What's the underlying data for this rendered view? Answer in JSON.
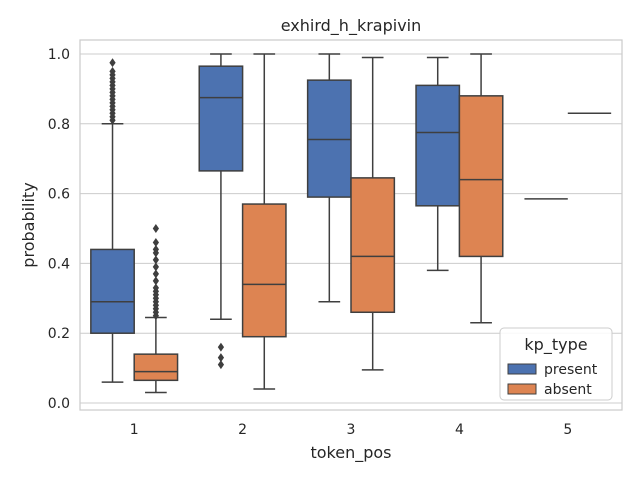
{
  "chart_data": {
    "type": "box",
    "title": "exhird_h_krapivin",
    "xlabel": "token_pos",
    "ylabel": "probability",
    "ylim": [
      -0.02,
      1.04
    ],
    "yticks": [
      0.0,
      0.2,
      0.4,
      0.6,
      0.8,
      1.0
    ],
    "ytick_labels": [
      "0.0",
      "0.2",
      "0.4",
      "0.6",
      "0.8",
      "1.0"
    ],
    "categories": [
      "1",
      "2",
      "3",
      "4",
      "5"
    ],
    "grid": true,
    "legend": {
      "title": "kp_type",
      "position": "lower-right"
    },
    "series": [
      {
        "name": "present",
        "color": "#4c72b0",
        "boxes": [
          {
            "category": "1",
            "whislo": 0.06,
            "q1": 0.2,
            "med": 0.29,
            "q3": 0.44,
            "whishi": 0.8,
            "fliers": [
              0.81,
              0.82,
              0.83,
              0.84,
              0.85,
              0.86,
              0.87,
              0.88,
              0.89,
              0.9,
              0.91,
              0.92,
              0.93,
              0.94,
              0.95,
              0.975
            ]
          },
          {
            "category": "2",
            "whislo": 0.24,
            "q1": 0.665,
            "med": 0.875,
            "q3": 0.965,
            "whishi": 1.0,
            "fliers": [
              0.11,
              0.13,
              0.16
            ]
          },
          {
            "category": "3",
            "whislo": 0.29,
            "q1": 0.59,
            "med": 0.755,
            "q3": 0.925,
            "whishi": 1.0,
            "fliers": []
          },
          {
            "category": "4",
            "whislo": 0.38,
            "q1": 0.565,
            "med": 0.775,
            "q3": 0.91,
            "whishi": 0.99,
            "fliers": []
          },
          {
            "category": "5",
            "whislo": 0.585,
            "q1": 0.585,
            "med": 0.585,
            "q3": 0.585,
            "whishi": 0.585,
            "fliers": []
          }
        ]
      },
      {
        "name": "absent",
        "color": "#dd8452",
        "boxes": [
          {
            "category": "1",
            "whislo": 0.03,
            "q1": 0.065,
            "med": 0.09,
            "q3": 0.14,
            "whishi": 0.245,
            "fliers": [
              0.25,
              0.26,
              0.27,
              0.28,
              0.29,
              0.3,
              0.31,
              0.32,
              0.33,
              0.35,
              0.37,
              0.39,
              0.41,
              0.43,
              0.44,
              0.46,
              0.5
            ]
          },
          {
            "category": "2",
            "whislo": 0.04,
            "q1": 0.19,
            "med": 0.34,
            "q3": 0.57,
            "whishi": 1.0,
            "fliers": []
          },
          {
            "category": "3",
            "whislo": 0.095,
            "q1": 0.26,
            "med": 0.42,
            "q3": 0.645,
            "whishi": 0.99,
            "fliers": []
          },
          {
            "category": "4",
            "whislo": 0.23,
            "q1": 0.42,
            "med": 0.64,
            "q3": 0.88,
            "whishi": 1.0,
            "fliers": []
          },
          {
            "category": "5",
            "whislo": 0.83,
            "q1": 0.83,
            "med": 0.83,
            "q3": 0.83,
            "whishi": 0.83,
            "fliers": []
          }
        ]
      }
    ]
  }
}
